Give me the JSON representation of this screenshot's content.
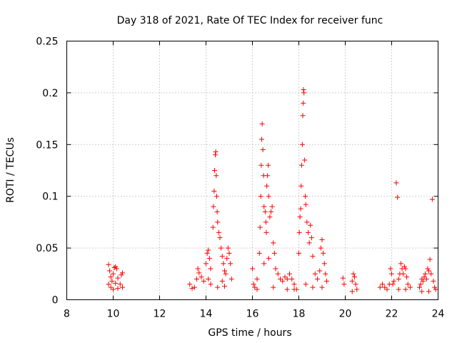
{
  "chart_data": {
    "type": "scatter",
    "title": "Day 318 of 2021, Rate Of TEC Index for receiver func",
    "xlabel": "GPS time / hours",
    "ylabel": "ROTI / TECUs",
    "xlim": [
      8,
      24
    ],
    "ylim": [
      0,
      0.25
    ],
    "x_ticks": [
      8,
      10,
      12,
      14,
      16,
      18,
      20,
      22,
      24
    ],
    "y_ticks": [
      0,
      0.05,
      0.1,
      0.15,
      0.2,
      0.25
    ],
    "x_tick_labels": [
      "8",
      "10",
      "12",
      "14",
      "16",
      "18",
      "20",
      "22",
      "24"
    ],
    "y_tick_labels": [
      "0",
      "0.05",
      "0.1",
      "0.15",
      "0.2",
      "0.25"
    ],
    "grid": true,
    "marker": "+",
    "color": "#ff0000",
    "series": [
      {
        "name": "ROTI",
        "points": [
          [
            9.8,
            0.034
          ],
          [
            9.85,
            0.028
          ],
          [
            9.9,
            0.022
          ],
          [
            9.95,
            0.018
          ],
          [
            10.0,
            0.025
          ],
          [
            10.05,
            0.031
          ],
          [
            10.1,
            0.032
          ],
          [
            10.15,
            0.03
          ],
          [
            10.2,
            0.021
          ],
          [
            10.3,
            0.015
          ],
          [
            10.35,
            0.024
          ],
          [
            10.4,
            0.026
          ],
          [
            9.9,
            0.012
          ],
          [
            10.0,
            0.01
          ],
          [
            10.2,
            0.011
          ],
          [
            10.4,
            0.012
          ],
          [
            9.8,
            0.015
          ],
          [
            10.1,
            0.016
          ],
          [
            13.3,
            0.015
          ],
          [
            13.4,
            0.011
          ],
          [
            13.5,
            0.012
          ],
          [
            13.6,
            0.02
          ],
          [
            13.65,
            0.03
          ],
          [
            13.7,
            0.026
          ],
          [
            13.8,
            0.022
          ],
          [
            13.9,
            0.018
          ],
          [
            14.0,
            0.035
          ],
          [
            14.05,
            0.045
          ],
          [
            14.1,
            0.048
          ],
          [
            14.15,
            0.04
          ],
          [
            14.2,
            0.03
          ],
          [
            14.3,
            0.07
          ],
          [
            14.32,
            0.09
          ],
          [
            14.35,
            0.105
          ],
          [
            14.37,
            0.125
          ],
          [
            14.4,
            0.14
          ],
          [
            14.42,
            0.143
          ],
          [
            14.44,
            0.12
          ],
          [
            14.46,
            0.1
          ],
          [
            14.48,
            0.085
          ],
          [
            14.5,
            0.075
          ],
          [
            14.55,
            0.065
          ],
          [
            14.6,
            0.06
          ],
          [
            14.65,
            0.05
          ],
          [
            14.7,
            0.042
          ],
          [
            14.75,
            0.035
          ],
          [
            14.8,
            0.028
          ],
          [
            14.85,
            0.025
          ],
          [
            14.9,
            0.04
          ],
          [
            14.95,
            0.05
          ],
          [
            15.0,
            0.045
          ],
          [
            15.05,
            0.035
          ],
          [
            15.1,
            0.02
          ],
          [
            14.2,
            0.015
          ],
          [
            14.5,
            0.012
          ],
          [
            14.8,
            0.013
          ],
          [
            14.1,
            0.02
          ],
          [
            14.7,
            0.018
          ],
          [
            16.0,
            0.03
          ],
          [
            16.05,
            0.015
          ],
          [
            16.1,
            0.012
          ],
          [
            16.2,
            0.02
          ],
          [
            16.3,
            0.045
          ],
          [
            16.33,
            0.07
          ],
          [
            16.36,
            0.1
          ],
          [
            16.38,
            0.13
          ],
          [
            16.4,
            0.155
          ],
          [
            16.42,
            0.17
          ],
          [
            16.45,
            0.145
          ],
          [
            16.48,
            0.12
          ],
          [
            16.5,
            0.09
          ],
          [
            16.55,
            0.085
          ],
          [
            16.58,
            0.075
          ],
          [
            16.6,
            0.065
          ],
          [
            16.62,
            0.11
          ],
          [
            16.65,
            0.12
          ],
          [
            16.68,
            0.13
          ],
          [
            16.7,
            0.1
          ],
          [
            16.75,
            0.08
          ],
          [
            16.8,
            0.085
          ],
          [
            16.85,
            0.09
          ],
          [
            16.9,
            0.055
          ],
          [
            16.95,
            0.045
          ],
          [
            17.0,
            0.03
          ],
          [
            17.1,
            0.025
          ],
          [
            17.2,
            0.02
          ],
          [
            17.3,
            0.018
          ],
          [
            17.4,
            0.022
          ],
          [
            17.5,
            0.02
          ],
          [
            17.6,
            0.025
          ],
          [
            17.7,
            0.02
          ],
          [
            17.8,
            0.015
          ],
          [
            16.5,
            0.035
          ],
          [
            16.7,
            0.04
          ],
          [
            16.2,
            0.01
          ],
          [
            16.9,
            0.012
          ],
          [
            17.5,
            0.01
          ],
          [
            17.8,
            0.01
          ],
          [
            17.9,
            0.01
          ],
          [
            18.0,
            0.045
          ],
          [
            18.02,
            0.065
          ],
          [
            18.05,
            0.08
          ],
          [
            18.08,
            0.088
          ],
          [
            18.1,
            0.11
          ],
          [
            18.12,
            0.13
          ],
          [
            18.15,
            0.15
          ],
          [
            18.17,
            0.178
          ],
          [
            18.19,
            0.19
          ],
          [
            18.2,
            0.203
          ],
          [
            18.22,
            0.2
          ],
          [
            18.25,
            0.135
          ],
          [
            18.28,
            0.1
          ],
          [
            18.3,
            0.092
          ],
          [
            18.35,
            0.075
          ],
          [
            18.4,
            0.065
          ],
          [
            18.45,
            0.055
          ],
          [
            18.5,
            0.072
          ],
          [
            18.55,
            0.06
          ],
          [
            18.6,
            0.042
          ],
          [
            18.7,
            0.025
          ],
          [
            18.8,
            0.02
          ],
          [
            18.9,
            0.028
          ],
          [
            18.95,
            0.05
          ],
          [
            19.0,
            0.058
          ],
          [
            19.05,
            0.045
          ],
          [
            19.1,
            0.035
          ],
          [
            19.15,
            0.025
          ],
          [
            19.2,
            0.018
          ],
          [
            18.3,
            0.015
          ],
          [
            18.6,
            0.012
          ],
          [
            19.0,
            0.012
          ],
          [
            19.9,
            0.021
          ],
          [
            19.95,
            0.015
          ],
          [
            20.3,
            0.018
          ],
          [
            20.35,
            0.025
          ],
          [
            20.4,
            0.022
          ],
          [
            20.45,
            0.015
          ],
          [
            20.5,
            0.01
          ],
          [
            20.3,
            0.008
          ],
          [
            21.5,
            0.012
          ],
          [
            21.6,
            0.015
          ],
          [
            21.7,
            0.012
          ],
          [
            21.8,
            0.01
          ],
          [
            21.9,
            0.015
          ],
          [
            21.95,
            0.03
          ],
          [
            22.0,
            0.025
          ],
          [
            22.05,
            0.015
          ],
          [
            22.1,
            0.018
          ],
          [
            22.2,
            0.113
          ],
          [
            22.25,
            0.099
          ],
          [
            22.3,
            0.02
          ],
          [
            22.35,
            0.025
          ],
          [
            22.4,
            0.035
          ],
          [
            22.45,
            0.03
          ],
          [
            22.5,
            0.025
          ],
          [
            22.55,
            0.032
          ],
          [
            22.6,
            0.03
          ],
          [
            22.65,
            0.022
          ],
          [
            22.7,
            0.015
          ],
          [
            22.8,
            0.012
          ],
          [
            22.3,
            0.01
          ],
          [
            22.6,
            0.01
          ],
          [
            23.2,
            0.012
          ],
          [
            23.25,
            0.015
          ],
          [
            23.3,
            0.02
          ],
          [
            23.35,
            0.018
          ],
          [
            23.4,
            0.022
          ],
          [
            23.45,
            0.025
          ],
          [
            23.5,
            0.02
          ],
          [
            23.55,
            0.03
          ],
          [
            23.6,
            0.028
          ],
          [
            23.65,
            0.039
          ],
          [
            23.7,
            0.025
          ],
          [
            23.75,
            0.097
          ],
          [
            23.8,
            0.018
          ],
          [
            23.85,
            0.012
          ],
          [
            23.3,
            0.008
          ],
          [
            23.6,
            0.008
          ],
          [
            23.9,
            0.01
          ]
        ]
      }
    ]
  }
}
